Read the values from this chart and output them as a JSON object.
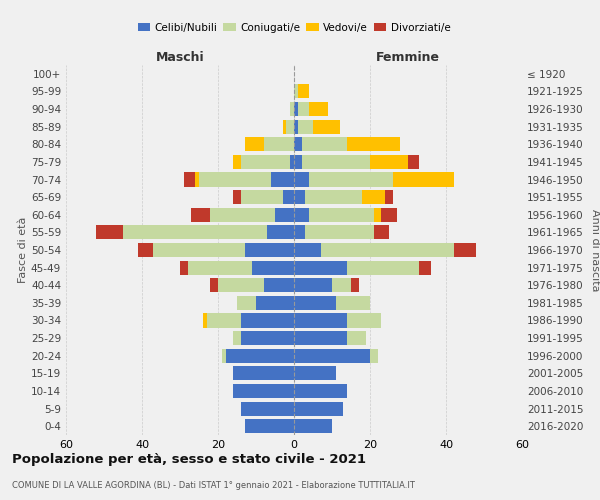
{
  "age_groups": [
    "0-4",
    "5-9",
    "10-14",
    "15-19",
    "20-24",
    "25-29",
    "30-34",
    "35-39",
    "40-44",
    "45-49",
    "50-54",
    "55-59",
    "60-64",
    "65-69",
    "70-74",
    "75-79",
    "80-84",
    "85-89",
    "90-94",
    "95-99",
    "100+"
  ],
  "birth_years": [
    "2016-2020",
    "2011-2015",
    "2006-2010",
    "2001-2005",
    "1996-2000",
    "1991-1995",
    "1986-1990",
    "1981-1985",
    "1976-1980",
    "1971-1975",
    "1966-1970",
    "1961-1965",
    "1956-1960",
    "1951-1955",
    "1946-1950",
    "1941-1945",
    "1936-1940",
    "1931-1935",
    "1926-1930",
    "1921-1925",
    "≤ 1920"
  ],
  "males": {
    "celibi": [
      13,
      14,
      16,
      16,
      18,
      14,
      14,
      10,
      8,
      11,
      13,
      7,
      5,
      3,
      6,
      1,
      0,
      0,
      0,
      0,
      0
    ],
    "coniugati": [
      0,
      0,
      0,
      0,
      1,
      2,
      9,
      5,
      12,
      17,
      24,
      38,
      17,
      11,
      19,
      13,
      8,
      2,
      1,
      0,
      0
    ],
    "vedovi": [
      0,
      0,
      0,
      0,
      0,
      0,
      1,
      0,
      0,
      0,
      0,
      0,
      0,
      0,
      1,
      2,
      5,
      1,
      0,
      0,
      0
    ],
    "divorziati": [
      0,
      0,
      0,
      0,
      0,
      0,
      0,
      0,
      2,
      2,
      4,
      7,
      5,
      2,
      3,
      0,
      0,
      0,
      0,
      0,
      0
    ]
  },
  "females": {
    "nubili": [
      10,
      13,
      14,
      11,
      20,
      14,
      14,
      11,
      10,
      14,
      7,
      3,
      4,
      3,
      4,
      2,
      2,
      1,
      1,
      0,
      0
    ],
    "coniugate": [
      0,
      0,
      0,
      0,
      2,
      5,
      9,
      9,
      5,
      19,
      35,
      18,
      17,
      15,
      22,
      18,
      12,
      4,
      3,
      1,
      0
    ],
    "vedove": [
      0,
      0,
      0,
      0,
      0,
      0,
      0,
      0,
      0,
      0,
      0,
      0,
      2,
      6,
      16,
      10,
      14,
      7,
      5,
      3,
      0
    ],
    "divorziate": [
      0,
      0,
      0,
      0,
      0,
      0,
      0,
      0,
      2,
      3,
      6,
      4,
      4,
      2,
      0,
      3,
      0,
      0,
      0,
      0,
      0
    ]
  },
  "color_celibi": "#4472c4",
  "color_coniugati": "#c5d9a0",
  "color_vedovi": "#ffc000",
  "color_divorziati": "#c0392b",
  "xlim": 60,
  "title": "Popolazione per età, sesso e stato civile - 2021",
  "subtitle": "COMUNE DI LA VALLE AGORDINA (BL) - Dati ISTAT 1° gennaio 2021 - Elaborazione TUTTITALIA.IT",
  "ylabel_left": "Fasce di età",
  "ylabel_right": "Anni di nascita",
  "xlabel_left": "Maschi",
  "xlabel_right": "Femmine",
  "background_color": "#f0f0f0",
  "grid_color": "#cccccc"
}
